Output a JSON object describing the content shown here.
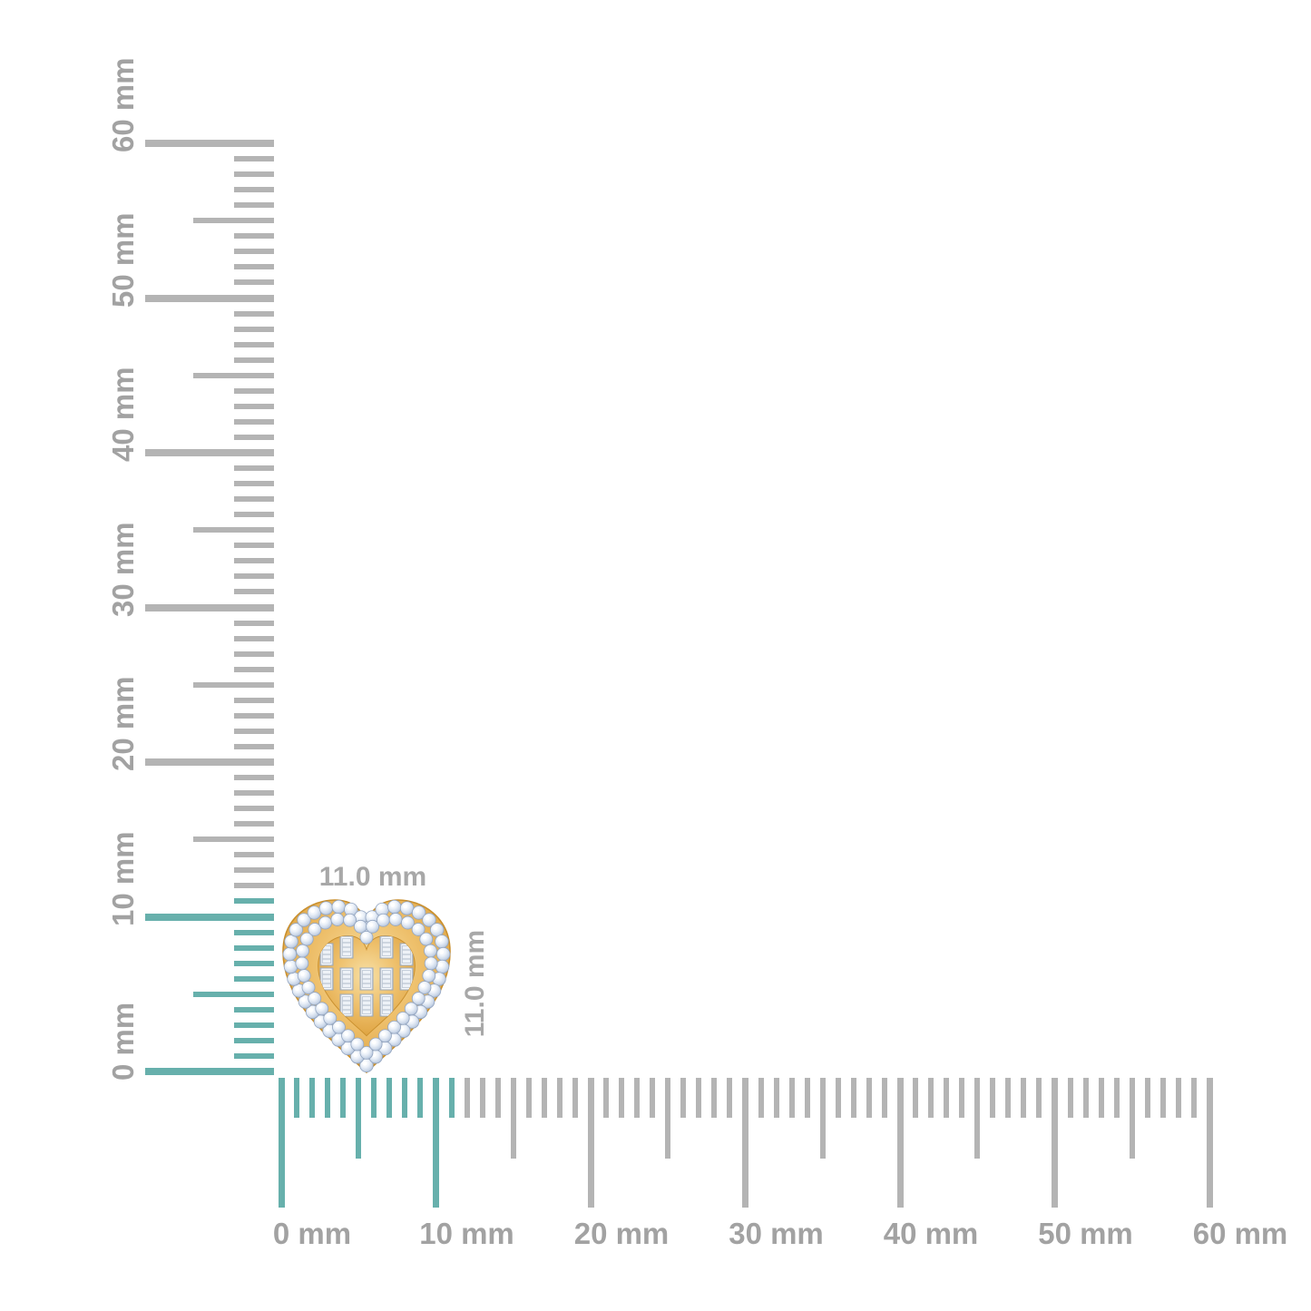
{
  "figure": {
    "type": "product-measurement-diagram",
    "background": "#ffffff"
  },
  "rulers": {
    "unit": "mm",
    "max_mm": 60,
    "minor_step_mm": 1,
    "medium_step_mm": 5,
    "major_step_mm": 10,
    "highlight_extent_mm": 11,
    "colors": {
      "tick": "#b4b4b4",
      "tick_highlight": "#67b0ac",
      "label": "#a2a2a2"
    },
    "vertical": {
      "labels": [
        "0 mm",
        "10 mm",
        "20 mm",
        "30 mm",
        "40 mm",
        "50 mm",
        "60 mm"
      ]
    },
    "horizontal": {
      "labels": [
        "0 mm",
        "10 mm",
        "20 mm",
        "30 mm",
        "40 mm",
        "50 mm",
        "60 mm"
      ]
    }
  },
  "annotations": {
    "width_label": "11.0 mm",
    "height_label": "11.0 mm",
    "color": "#a8a8a8"
  },
  "jewel": {
    "description": "heart-shaped gold stud with double round-diamond halo and baguette-diamond checkerboard center",
    "width_mm": 11.0,
    "height_mm": 11.0,
    "outer_halo_count": 40,
    "inner_halo_count": 34,
    "baguette_count": 12,
    "colors": {
      "gold_light": "#f3d68e",
      "gold_mid": "#eec06c",
      "gold_dark": "#c98f2d",
      "diamond": "#ccd8e9",
      "diamond_edge": "#93a5c0",
      "baguette": "#f7f9fb"
    }
  }
}
